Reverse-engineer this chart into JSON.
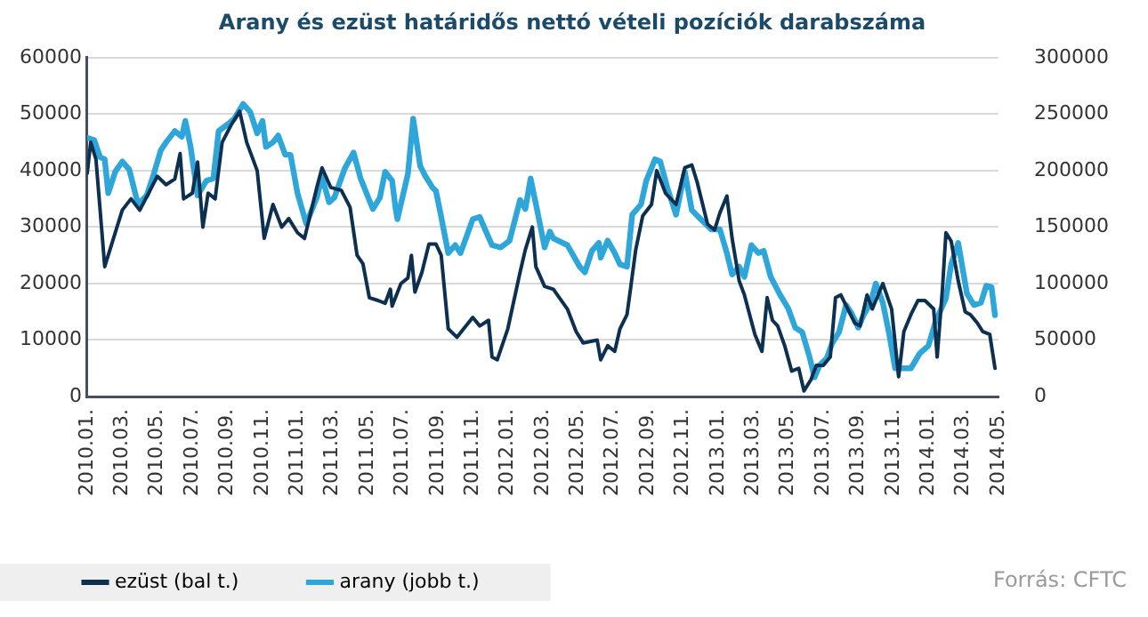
{
  "chart_data": {
    "type": "line",
    "title": "Arany és ezüst határidős nettó vételi pozíciók darabszáma",
    "annotations": [
      "Forrás: CFTC"
    ],
    "xlim": [
      "2010-01",
      "2014-05"
    ],
    "xticks": [
      {
        "value": "2010-01",
        "label": "2010.01."
      },
      {
        "value": "2010-03",
        "label": "2010.03."
      },
      {
        "value": "2010-05",
        "label": "2010.05."
      },
      {
        "value": "2010-07",
        "label": "2010.07."
      },
      {
        "value": "2010-09",
        "label": "2010.09."
      },
      {
        "value": "2010-11",
        "label": "2010.11."
      },
      {
        "value": "2011-01",
        "label": "2011.01."
      },
      {
        "value": "2011-03",
        "label": "2011.03."
      },
      {
        "value": "2011-05",
        "label": "2011.05."
      },
      {
        "value": "2011-07",
        "label": "2011.07."
      },
      {
        "value": "2011-09",
        "label": "2011.09."
      },
      {
        "value": "2011-11",
        "label": "2011.11."
      },
      {
        "value": "2012-01",
        "label": "2012.01."
      },
      {
        "value": "2012-03",
        "label": "2012.03."
      },
      {
        "value": "2012-05",
        "label": "2012.05."
      },
      {
        "value": "2012-07",
        "label": "2012.07."
      },
      {
        "value": "2012-09",
        "label": "2012.09."
      },
      {
        "value": "2012-11",
        "label": "2012.11."
      },
      {
        "value": "2013-01",
        "label": "2013.01."
      },
      {
        "value": "2013-03",
        "label": "2013.03."
      },
      {
        "value": "2013-05",
        "label": "2013.05."
      },
      {
        "value": "2013-07",
        "label": "2013.07."
      },
      {
        "value": "2013-09",
        "label": "2013.09."
      },
      {
        "value": "2013-11",
        "label": "2013.11."
      },
      {
        "value": "2014-01",
        "label": "2014.01."
      },
      {
        "value": "2014-03",
        "label": "2014.03."
      },
      {
        "value": "2014-05",
        "label": "2014.05."
      }
    ],
    "ylim": [
      0,
      60000
    ],
    "yticks": [
      0,
      10000,
      20000,
      30000,
      40000,
      50000,
      60000
    ],
    "y2lim": [
      0,
      300000
    ],
    "y2ticks": [
      0,
      50000,
      100000,
      150000,
      200000,
      250000,
      300000
    ],
    "grid": "y",
    "legend": "bottom",
    "marker": "none",
    "line_style": "solid",
    "series": [
      {
        "name": "ezüst (bal t.)",
        "axis": "y",
        "color": "#0d3050",
        "x": [
          "2010-01-01",
          "2010-01-07",
          "2010-01-16",
          "2010-02-01",
          "2010-02-16",
          "2010-03-01",
          "2010-03-16",
          "2010-04-01",
          "2010-04-16",
          "2010-05-01",
          "2010-05-16",
          "2010-06-01",
          "2010-06-10",
          "2010-06-16",
          "2010-07-01",
          "2010-07-10",
          "2010-07-19",
          "2010-07-28",
          "2010-08-10",
          "2010-08-22",
          "2010-09-07",
          "2010-09-22",
          "2010-10-04",
          "2010-10-22",
          "2010-11-04",
          "2010-11-19",
          "2010-12-04",
          "2010-12-16",
          "2011-01-01",
          "2011-01-13",
          "2011-02-04",
          "2011-02-13",
          "2011-02-28",
          "2011-03-16",
          "2011-04-01",
          "2011-04-13",
          "2011-04-23",
          "2011-05-04",
          "2011-05-19",
          "2011-06-01",
          "2011-06-10",
          "2011-06-13",
          "2011-06-28",
          "2011-07-10",
          "2011-07-16",
          "2011-07-22",
          "2011-08-04",
          "2011-08-16",
          "2011-08-28",
          "2011-09-07",
          "2011-09-19",
          "2011-10-04",
          "2011-11-01",
          "2011-11-13",
          "2011-11-28",
          "2011-12-04",
          "2011-12-13",
          "2012-01-01",
          "2012-01-22",
          "2012-02-01",
          "2012-02-13",
          "2012-02-19",
          "2012-03-04",
          "2012-03-19",
          "2012-04-13",
          "2012-04-28",
          "2012-05-10",
          "2012-06-04",
          "2012-06-10",
          "2012-06-22",
          "2012-07-04",
          "2012-07-13",
          "2012-07-25",
          "2012-08-01",
          "2012-08-10",
          "2012-08-22",
          "2012-09-07",
          "2012-09-16",
          "2012-10-01",
          "2012-10-19",
          "2012-11-04",
          "2012-11-16",
          "2012-11-25",
          "2012-12-13",
          "2012-12-25",
          "2013-01-04",
          "2013-01-16",
          "2013-01-25",
          "2013-02-07",
          "2013-02-16",
          "2013-03-04",
          "2013-03-16",
          "2013-03-25",
          "2013-04-04",
          "2013-04-13",
          "2013-04-25",
          "2013-05-07",
          "2013-05-19",
          "2013-05-28",
          "2013-06-10",
          "2013-06-19",
          "2013-07-01",
          "2013-07-13",
          "2013-07-22",
          "2013-08-01",
          "2013-08-13",
          "2013-08-25",
          "2013-09-04",
          "2013-09-16",
          "2013-09-25",
          "2013-10-13",
          "2013-10-28",
          "2013-11-10",
          "2013-11-19",
          "2013-12-01",
          "2013-12-13",
          "2013-12-25",
          "2014-01-10",
          "2014-01-16",
          "2014-01-25",
          "2014-02-01",
          "2014-02-10",
          "2014-02-22",
          "2014-03-04",
          "2014-03-13",
          "2014-03-25",
          "2014-04-04",
          "2014-04-16",
          "2014-04-25"
        ],
        "values": [
          39500,
          45000,
          42000,
          23000,
          28000,
          33000,
          35000,
          33000,
          36000,
          39000,
          37500,
          38500,
          43000,
          35000,
          36000,
          41500,
          30000,
          36000,
          35000,
          45000,
          48000,
          50500,
          45000,
          40000,
          28000,
          34000,
          30000,
          31500,
          29000,
          28000,
          37000,
          40500,
          37000,
          36500,
          33500,
          25000,
          23500,
          17500,
          17000,
          16500,
          19000,
          16000,
          20000,
          21000,
          25000,
          18500,
          22000,
          27000,
          27000,
          25000,
          12000,
          10500,
          14000,
          12500,
          13500,
          7000,
          6500,
          12000,
          22000,
          26000,
          30000,
          23000,
          19500,
          19000,
          15500,
          11500,
          9500,
          10000,
          6500,
          9000,
          8000,
          12000,
          14500,
          19000,
          26000,
          32000,
          34000,
          40000,
          36000,
          34000,
          40500,
          41000,
          38000,
          30500,
          29500,
          32500,
          35500,
          28000,
          20500,
          18000,
          11000,
          8000,
          17500,
          13500,
          12500,
          9000,
          4500,
          5000,
          1000,
          3000,
          5500,
          5500,
          7000,
          17500,
          18000,
          15500,
          13000,
          12500,
          18000,
          15500,
          20000,
          15500,
          3500,
          11500,
          14500,
          17000,
          17000,
          15500,
          7000,
          19000,
          29000,
          27500,
          20500,
          15000,
          14500,
          13000,
          11500,
          11000,
          5000
        ]
      },
      {
        "name": "arany (jobb t.)",
        "axis": "y2",
        "color": "#2ea6d9",
        "x": [
          "2010-01-01",
          "2010-01-13",
          "2010-01-23",
          "2010-02-01",
          "2010-02-07",
          "2010-02-19",
          "2010-03-01",
          "2010-03-13",
          "2010-03-28",
          "2010-04-13",
          "2010-04-25",
          "2010-05-07",
          "2010-05-16",
          "2010-06-01",
          "2010-06-13",
          "2010-06-19",
          "2010-06-28",
          "2010-07-10",
          "2010-07-25",
          "2010-08-07",
          "2010-08-16",
          "2010-09-04",
          "2010-09-13",
          "2010-09-28",
          "2010-10-10",
          "2010-10-22",
          "2010-11-01",
          "2010-11-07",
          "2010-11-19",
          "2010-11-28",
          "2010-12-10",
          "2010-12-19",
          "2011-01-01",
          "2011-01-16",
          "2011-02-04",
          "2011-02-13",
          "2011-02-25",
          "2011-03-04",
          "2011-03-22",
          "2011-04-07",
          "2011-04-19",
          "2011-05-10",
          "2011-05-22",
          "2011-06-01",
          "2011-06-13",
          "2011-06-19",
          "2011-06-22",
          "2011-07-10",
          "2011-07-19",
          "2011-08-01",
          "2011-08-10",
          "2011-08-22",
          "2011-08-28",
          "2011-09-07",
          "2011-09-19",
          "2011-10-01",
          "2011-10-10",
          "2011-10-22",
          "2011-11-01",
          "2011-11-13",
          "2011-11-22",
          "2011-12-04",
          "2011-12-19",
          "2012-01-04",
          "2012-01-22",
          "2012-02-01",
          "2012-02-10",
          "2012-02-22",
          "2012-03-04",
          "2012-03-13",
          "2012-03-19",
          "2012-04-13",
          "2012-05-04",
          "2012-05-13",
          "2012-05-25",
          "2012-06-07",
          "2012-06-10",
          "2012-06-22",
          "2012-07-04",
          "2012-07-13",
          "2012-07-25",
          "2012-08-04",
          "2012-08-19",
          "2012-08-28",
          "2012-09-13",
          "2012-09-22",
          "2012-10-04",
          "2012-10-19",
          "2012-11-04",
          "2012-11-16",
          "2012-12-01",
          "2012-12-19",
          "2013-01-04",
          "2013-01-16",
          "2013-01-25",
          "2013-02-07",
          "2013-02-16",
          "2013-02-28",
          "2013-03-10",
          "2013-03-19",
          "2013-04-01",
          "2013-04-16",
          "2013-05-01",
          "2013-05-13",
          "2013-05-25",
          "2013-06-07",
          "2013-06-16",
          "2013-06-25",
          "2013-07-07",
          "2013-07-16",
          "2013-07-28",
          "2013-08-10",
          "2013-08-19",
          "2013-09-01",
          "2013-09-10",
          "2013-09-22",
          "2013-10-01",
          "2013-10-13",
          "2013-10-24",
          "2013-11-04",
          "2013-11-16",
          "2013-12-01",
          "2013-12-16",
          "2014-01-01",
          "2014-01-13",
          "2014-02-01",
          "2014-02-10",
          "2014-02-22",
          "2014-03-07",
          "2014-03-19",
          "2014-04-01",
          "2014-04-10",
          "2014-04-19",
          "2014-04-25"
        ],
        "values": [
          229000,
          227000,
          212000,
          210000,
          180000,
          199000,
          208000,
          201000,
          170000,
          178000,
          197000,
          218000,
          225000,
          235000,
          230000,
          244000,
          221000,
          178000,
          191000,
          193000,
          235000,
          242000,
          246000,
          259000,
          252000,
          233000,
          244000,
          221000,
          225000,
          231000,
          214000,
          214000,
          180000,
          153000,
          176000,
          195000,
          172000,
          176000,
          202000,
          216000,
          193000,
          166000,
          176000,
          199000,
          191000,
          166000,
          157000,
          197000,
          246000,
          204000,
          195000,
          185000,
          182000,
          159000,
          127000,
          134000,
          127000,
          144000,
          157000,
          159000,
          148000,
          134000,
          132000,
          138000,
          174000,
          166000,
          193000,
          163000,
          132000,
          146000,
          140000,
          134000,
          115000,
          110000,
          129000,
          136000,
          123000,
          138000,
          127000,
          117000,
          115000,
          161000,
          170000,
          191000,
          210000,
          208000,
          185000,
          161000,
          199000,
          165000,
          157000,
          148000,
          148000,
          127000,
          108000,
          115000,
          106000,
          134000,
          127000,
          129000,
          106000,
          91000,
          78000,
          61000,
          57000,
          36000,
          17000,
          28000,
          34000,
          47000,
          57000,
          81000,
          74000,
          61000,
          72000,
          83000,
          100000,
          83000,
          55000,
          25000,
          25000,
          25000,
          38000,
          45000,
          66000,
          87000,
          117000,
          136000,
          91000,
          81000,
          83000,
          98000,
          97000,
          72000
        ]
      }
    ]
  }
}
